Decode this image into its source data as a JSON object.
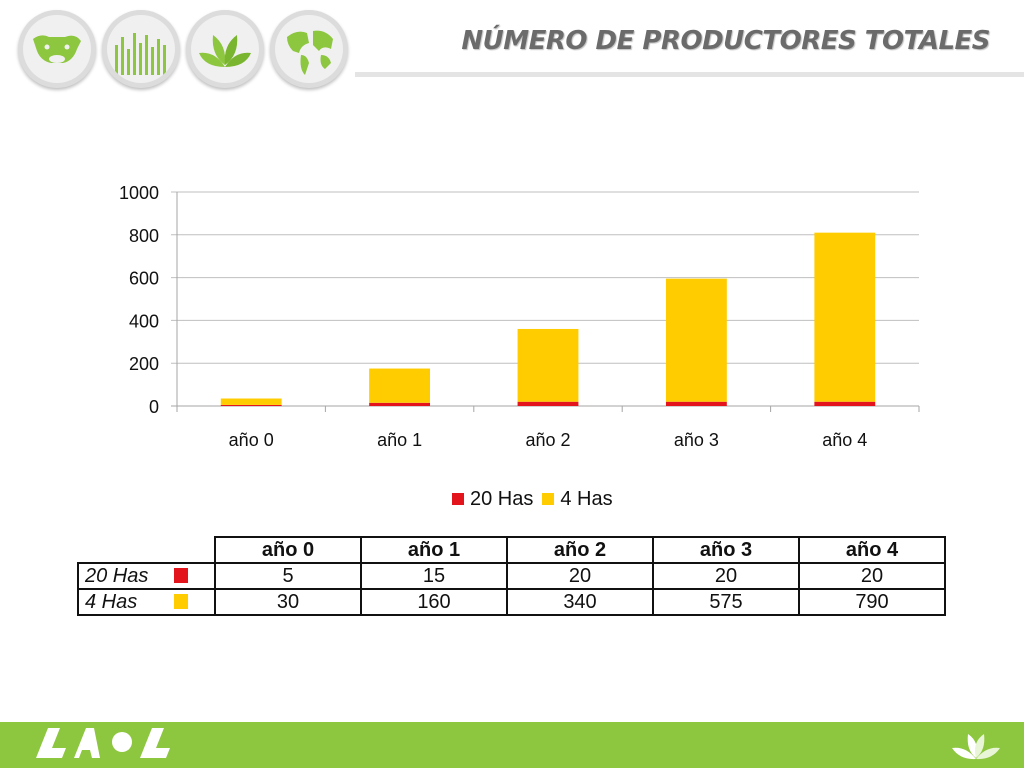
{
  "header": {
    "title": "NÚMERO DE PRODUCTORES TOTALES",
    "icons": [
      "cow-icon",
      "grass-icon",
      "leaf-sprout-icon",
      "globe-icon"
    ]
  },
  "colors": {
    "series_20has": "#e3141b",
    "series_4has": "#ffcc00",
    "green": "#8dc63f",
    "title": "#6b6b6b",
    "grid": "#bfbfbf"
  },
  "chart_data": {
    "type": "bar",
    "stacked": true,
    "categories": [
      "año 0",
      "año 1",
      "año 2",
      "año 3",
      "año 4"
    ],
    "series": [
      {
        "name": "20 Has",
        "values": [
          5,
          15,
          20,
          20,
          20
        ],
        "color": "#e3141b"
      },
      {
        "name": "4 Has",
        "values": [
          30,
          160,
          340,
          575,
          790
        ],
        "color": "#ffcc00"
      }
    ],
    "ylim": [
      0,
      1000
    ],
    "yticks": [
      0,
      200,
      400,
      600,
      800,
      1000
    ],
    "ytick_labels": [
      "0",
      "200",
      "400",
      "600",
      "800",
      "1000"
    ],
    "grid": true,
    "legend": "bottom"
  },
  "table": {
    "columns": [
      "año 0",
      "año 1",
      "año 2",
      "año 3",
      "año 4"
    ],
    "rows": [
      {
        "label": "20 Has",
        "values": [
          "5",
          "15",
          "20",
          "20",
          "20"
        ]
      },
      {
        "label": "4 Has",
        "values": [
          "30",
          "160",
          "340",
          "575",
          "790"
        ]
      }
    ]
  }
}
